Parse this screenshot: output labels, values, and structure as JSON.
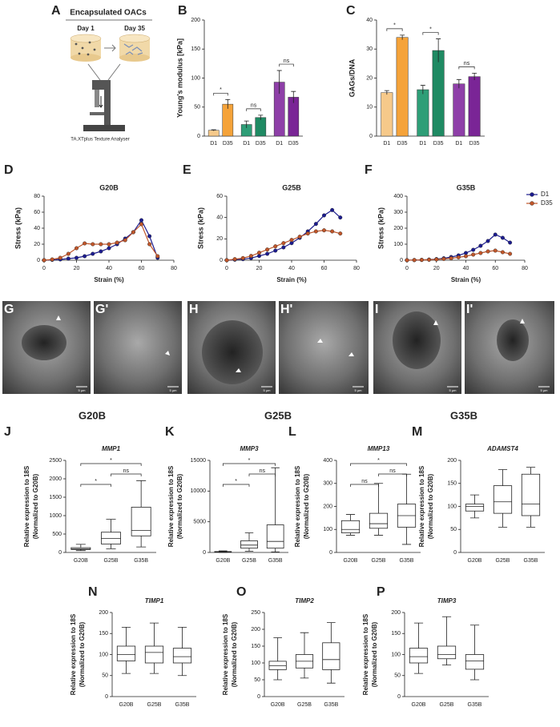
{
  "panel_a": {
    "letter": "A",
    "title": "Encapsulated OACs",
    "day1": "Day 1",
    "day35": "Day 35",
    "instrument": "TA.XTplus Texture Analyser"
  },
  "sem": {
    "panels": [
      {
        "letter": "G",
        "scale": "5 µm"
      },
      {
        "letter": "G'",
        "scale": "5 µm"
      },
      {
        "letter": "H",
        "scale": "5 µm"
      },
      {
        "letter": "H'",
        "scale": "5 µm"
      },
      {
        "letter": "I",
        "scale": "5 µm"
      },
      {
        "letter": "I'",
        "scale": "5 µm"
      }
    ],
    "groups": [
      "G20B",
      "G25B",
      "G35B"
    ]
  },
  "chart_data": [
    {
      "type": "bar",
      "letter": "B",
      "ylabel": "Young's modulus [kPa]",
      "categories": [
        "D1",
        "D35",
        "D1",
        "D35",
        "D1",
        "D35"
      ],
      "values": [
        10,
        55,
        20,
        32,
        93,
        67
      ],
      "errors": [
        1,
        8,
        6,
        4,
        20,
        10
      ],
      "colors": [
        "#f6c98a",
        "#f5a33a",
        "#2e9e77",
        "#1f8a63",
        "#8e3fa8",
        "#7a2596"
      ],
      "ylim": [
        0,
        200
      ],
      "yticks": [
        0,
        50,
        100,
        150,
        200
      ],
      "annotations": [
        {
          "text": "*",
          "between": [
            0,
            1
          ]
        },
        {
          "text": "ns",
          "between": [
            2,
            3
          ]
        },
        {
          "text": "ns",
          "between": [
            4,
            5
          ]
        }
      ]
    },
    {
      "type": "bar",
      "letter": "C",
      "ylabel": "GAGs/DNA",
      "categories": [
        "D1",
        "D35",
        "D1",
        "D35",
        "D1",
        "D35"
      ],
      "values": [
        15,
        34,
        16,
        29.5,
        18,
        20.5
      ],
      "errors": [
        0.7,
        0.8,
        1.5,
        4,
        1.5,
        1.2
      ],
      "colors": [
        "#f6c98a",
        "#f5a33a",
        "#2e9e77",
        "#1f8a63",
        "#8e3fa8",
        "#7a2596"
      ],
      "ylim": [
        0,
        40
      ],
      "yticks": [
        0,
        10,
        20,
        30,
        40
      ],
      "annotations": [
        {
          "text": "*",
          "between": [
            0,
            1
          ]
        },
        {
          "text": "*",
          "between": [
            2,
            3
          ]
        },
        {
          "text": "ns",
          "between": [
            4,
            5
          ]
        }
      ]
    },
    {
      "type": "line",
      "letter": "D",
      "title": "G20B",
      "xlabel": "Strain (%)",
      "ylabel": "Stress (kPa)",
      "x": [
        0,
        5,
        10,
        15,
        20,
        25,
        30,
        35,
        40,
        45,
        50,
        55,
        60,
        65,
        70
      ],
      "series": [
        {
          "name": "D1",
          "color": "#1c1c8f",
          "values": [
            0,
            0.5,
            1,
            2,
            3,
            5,
            8,
            11,
            15,
            20,
            27,
            35,
            50,
            30,
            3
          ]
        },
        {
          "name": "D35",
          "color": "#c0562a",
          "values": [
            0,
            1,
            3,
            8,
            15,
            21,
            20,
            20,
            20,
            22,
            25,
            35,
            45,
            20,
            5
          ]
        }
      ],
      "xlim": [
        0,
        80
      ],
      "xticks": [
        0,
        20,
        40,
        60,
        80
      ],
      "ylim": [
        0,
        80
      ],
      "yticks": [
        0,
        20,
        40,
        60,
        80
      ]
    },
    {
      "type": "line",
      "letter": "E",
      "title": "G25B",
      "xlabel": "Strain (%)",
      "ylabel": "Stress (kPa)",
      "x": [
        0,
        5,
        10,
        15,
        20,
        25,
        30,
        35,
        40,
        45,
        50,
        55,
        60,
        65,
        70
      ],
      "series": [
        {
          "name": "D1",
          "color": "#1c1c8f",
          "values": [
            0,
            0.5,
            1,
            2,
            4,
            6,
            9,
            12,
            16,
            21,
            27,
            34,
            42,
            47,
            40
          ]
        },
        {
          "name": "D35",
          "color": "#c0562a",
          "values": [
            0,
            1,
            2,
            4,
            7,
            10,
            13,
            16,
            19,
            22,
            25,
            27,
            28,
            27,
            25
          ]
        }
      ],
      "xlim": [
        0,
        80
      ],
      "xticks": [
        0,
        20,
        40,
        60,
        80
      ],
      "ylim": [
        0,
        60
      ],
      "yticks": [
        0,
        20,
        40,
        60
      ]
    },
    {
      "type": "line",
      "letter": "F",
      "title": "G35B",
      "xlabel": "Strain (%)",
      "ylabel": "Stress (kPa)",
      "legend": "right",
      "x": [
        0,
        5,
        10,
        15,
        20,
        25,
        30,
        35,
        40,
        45,
        50,
        55,
        60,
        65,
        70
      ],
      "series": [
        {
          "name": "D1",
          "color": "#1c1c8f",
          "values": [
            0,
            1,
            2,
            4,
            7,
            12,
            20,
            30,
            45,
            65,
            90,
            120,
            160,
            140,
            110
          ]
        },
        {
          "name": "D35",
          "color": "#c0562a",
          "values": [
            0,
            1,
            2,
            3,
            5,
            8,
            12,
            18,
            25,
            35,
            45,
            55,
            60,
            50,
            40
          ]
        }
      ],
      "xlim": [
        0,
        80
      ],
      "xticks": [
        0,
        20,
        40,
        60,
        80
      ],
      "ylim": [
        0,
        400
      ],
      "yticks": [
        0,
        100,
        200,
        300,
        400
      ]
    },
    {
      "type": "box",
      "letter": "J",
      "title": "MMP1",
      "ylabel": [
        "Relative expression to 18S",
        "(Normalized to G20B)"
      ],
      "categories": [
        "G20B",
        "G25B",
        "G35B"
      ],
      "boxes": [
        [
          50,
          80,
          100,
          130,
          220
        ],
        [
          100,
          230,
          380,
          550,
          900
        ],
        [
          150,
          450,
          600,
          1230,
          1950
        ]
      ],
      "ylim": [
        0,
        2500
      ],
      "yticks": [
        0,
        500,
        1000,
        1500,
        2000,
        2500
      ],
      "annotations": [
        {
          "text": "*",
          "between": [
            0,
            2
          ]
        },
        {
          "text": "ns",
          "between": [
            1,
            2
          ]
        },
        {
          "text": "*",
          "between": [
            0,
            1
          ]
        }
      ]
    },
    {
      "type": "box",
      "letter": "K",
      "title": "MMP3",
      "ylabel": [
        "Relative expression to 18S",
        "(Normalized to G20B)"
      ],
      "categories": [
        "G20B",
        "G25B",
        "G35B"
      ],
      "boxes": [
        [
          0,
          50,
          100,
          150,
          250
        ],
        [
          200,
          700,
          1200,
          1900,
          3200
        ],
        [
          100,
          700,
          1800,
          4500,
          13800
        ]
      ],
      "ylim": [
        0,
        15000
      ],
      "yticks": [
        0,
        5000,
        10000,
        15000
      ],
      "annotations": [
        {
          "text": "*",
          "between": [
            0,
            2
          ]
        },
        {
          "text": "ns",
          "between": [
            1,
            2
          ]
        },
        {
          "text": "*",
          "between": [
            0,
            1
          ]
        }
      ]
    },
    {
      "type": "box",
      "letter": "L",
      "title": "MMP13",
      "ylabel": [
        "Relative expression to 18S",
        "(Normalized to G20B)"
      ],
      "categories": [
        "G20B",
        "G25B",
        "G35B"
      ],
      "boxes": [
        [
          75,
          85,
          100,
          138,
          165
        ],
        [
          75,
          105,
          125,
          170,
          300
        ],
        [
          35,
          110,
          160,
          210,
          340
        ]
      ],
      "ylim": [
        0,
        400
      ],
      "yticks": [
        0,
        100,
        200,
        300,
        400
      ],
      "annotations": [
        {
          "text": "*",
          "between": [
            0,
            2
          ]
        },
        {
          "text": "ns",
          "between": [
            1,
            2
          ]
        },
        {
          "text": "ns",
          "between": [
            0,
            1
          ]
        }
      ]
    },
    {
      "type": "box",
      "letter": "M",
      "title": "ADAMST4",
      "ylabel": [
        "Relative expression to 18S",
        "(Normalized to G20B)"
      ],
      "categories": [
        "G20B",
        "G25B",
        "G35B"
      ],
      "boxes": [
        [
          75,
          90,
          100,
          105,
          125
        ],
        [
          55,
          85,
          110,
          145,
          180
        ],
        [
          55,
          80,
          105,
          170,
          185
        ]
      ],
      "ylim": [
        0,
        200
      ],
      "yticks": [
        0,
        50,
        100,
        150,
        200
      ]
    },
    {
      "type": "box",
      "letter": "N",
      "title": "TIMP1",
      "ylabel": [
        "Relative expression to 18S",
        "(Normalized to G20B)"
      ],
      "categories": [
        "G20B",
        "G25B",
        "G35B"
      ],
      "boxes": [
        [
          55,
          85,
          100,
          120,
          165
        ],
        [
          55,
          80,
          105,
          120,
          175
        ],
        [
          50,
          80,
          95,
          115,
          165
        ]
      ],
      "ylim": [
        0,
        200
      ],
      "yticks": [
        0,
        50,
        100,
        150,
        200
      ]
    },
    {
      "type": "box",
      "letter": "O",
      "title": "TIMP2",
      "ylabel": [
        "Relative expression to 18S",
        "(Normalized to G20B)"
      ],
      "categories": [
        "G20B",
        "G25B",
        "G35B"
      ],
      "boxes": [
        [
          50,
          80,
          92,
          105,
          175
        ],
        [
          55,
          85,
          105,
          125,
          190
        ],
        [
          40,
          80,
          110,
          160,
          220
        ]
      ],
      "ylim": [
        0,
        250
      ],
      "yticks": [
        0,
        50,
        100,
        150,
        200,
        250
      ]
    },
    {
      "type": "box",
      "letter": "P",
      "title": "TIMP3",
      "ylabel": [
        "Relative expression to 18S",
        "(Normalized to G20B)"
      ],
      "categories": [
        "G20B",
        "G25B",
        "G35B"
      ],
      "boxes": [
        [
          55,
          80,
          95,
          115,
          175
        ],
        [
          75,
          90,
          100,
          120,
          190
        ],
        [
          40,
          65,
          85,
          100,
          170
        ]
      ],
      "ylim": [
        0,
        200
      ],
      "yticks": [
        0,
        50,
        100,
        150,
        200
      ]
    }
  ]
}
